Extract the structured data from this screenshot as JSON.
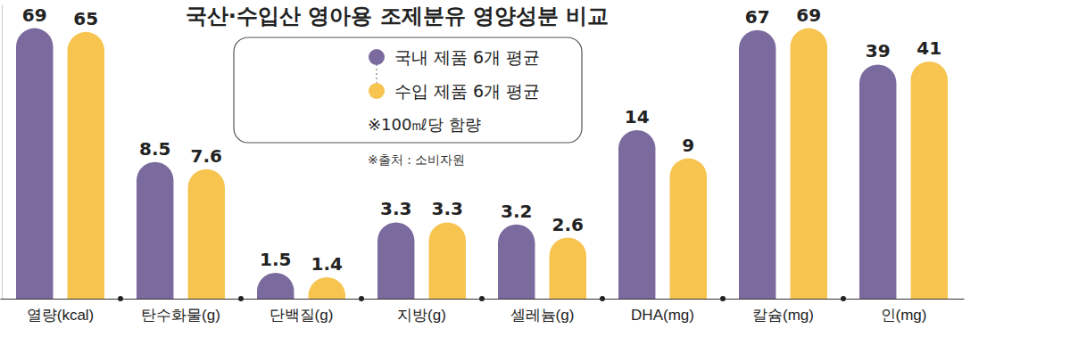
{
  "chart_data": {
    "type": "bar",
    "title": "국산·수입산 영아용 조제분유 영양성분 비교",
    "categories": [
      "열량(kcal)",
      "탄수화물(g)",
      "단백질(g)",
      "지방(g)",
      "셀레늄(g)",
      "DHA(mg)",
      "칼슘(mg)",
      "인(mg)"
    ],
    "series": [
      {
        "name": "국내 제품 6개 평균",
        "color": "#7b6a9e",
        "values": [
          69,
          8.5,
          1.5,
          3.3,
          3.2,
          14,
          67,
          39
        ]
      },
      {
        "name": "수입 제품 6개 평균",
        "color": "#f6c44f",
        "values": [
          65,
          7.6,
          1.4,
          3.3,
          2.6,
          9,
          69,
          41
        ]
      }
    ],
    "log": "y",
    "ylim": [
      1,
      100
    ],
    "data_labels": true,
    "tick_labels": "x",
    "legend": "top",
    "annotations": [
      "※100㎖당 함량",
      "※출처 : 소비자원"
    ]
  }
}
